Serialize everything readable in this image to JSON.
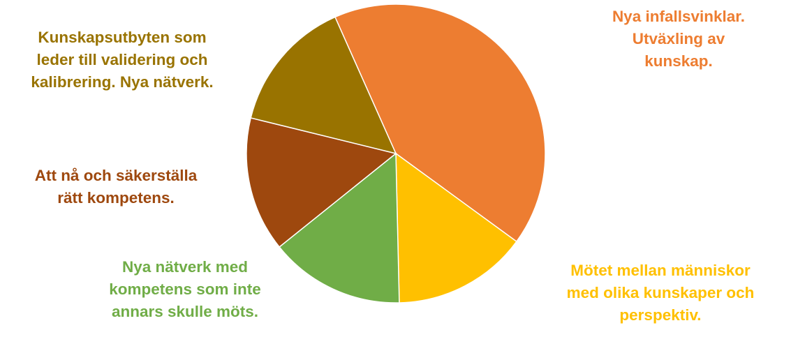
{
  "chart_data": {
    "type": "pie",
    "title": "",
    "legend": "none",
    "slices": [
      {
        "lines": [
          "Nya infallsvinklar.",
          "Utväxling av",
          "kunskap."
        ],
        "value": 41.7,
        "color": "#ED7D31"
      },
      {
        "lines": [
          "Mötet mellan människor",
          "med olika kunskaper och",
          "perspektiv."
        ],
        "value": 14.6,
        "color": "#FFC000"
      },
      {
        "lines": [
          "Nya nätverk med",
          "kompetens som inte",
          "annars skulle möts."
        ],
        "value": 14.6,
        "color": "#70AD47"
      },
      {
        "lines": [
          "Att nå och säkerställa",
          "rätt kompetens."
        ],
        "value": 14.6,
        "color": "#9E480E"
      },
      {
        "lines": [
          "Kunskapsutbyten som",
          "leder till validering och",
          "kalibrering. Nya nätverk."
        ],
        "value": 14.5,
        "color": "#997300"
      }
    ]
  }
}
